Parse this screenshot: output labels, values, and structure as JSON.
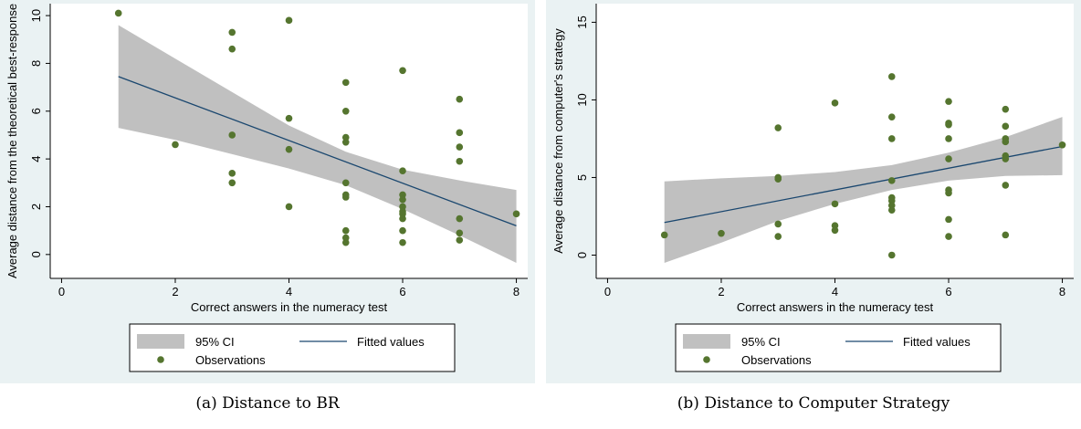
{
  "chart_data": [
    {
      "type": "scatter",
      "xlabel": "Correct answers in the numeracy test",
      "ylabel": "Average distance from the theoretical best-response",
      "xlim": [
        -0.2,
        8.2
      ],
      "ylim": [
        -1.0,
        10.5
      ],
      "xticks": [
        0,
        2,
        4,
        6,
        8
      ],
      "yticks": [
        0,
        2,
        4,
        6,
        8,
        10
      ],
      "grid": false,
      "legend_position": "bottom",
      "legend": {
        "ci_label": "95% CI",
        "fit_label": "Fitted values",
        "obs_label": "Observations"
      },
      "colors": {
        "plot_bg": "#ffffff",
        "outer_bg": "#eaf2f3",
        "ci": "#c0c0c0",
        "fit": "#1a476f",
        "points": "#55752f"
      },
      "points": [
        [
          1,
          10.1
        ],
        [
          2,
          4.6
        ],
        [
          3,
          9.3
        ],
        [
          3,
          8.6
        ],
        [
          3,
          5.0
        ],
        [
          3,
          3.4
        ],
        [
          3,
          3.0
        ],
        [
          4,
          9.8
        ],
        [
          4,
          5.7
        ],
        [
          4,
          4.4
        ],
        [
          4,
          2.0
        ],
        [
          5,
          7.2
        ],
        [
          5,
          6.0
        ],
        [
          5,
          4.9
        ],
        [
          5,
          4.7
        ],
        [
          5,
          3.0
        ],
        [
          5,
          2.5
        ],
        [
          5,
          2.4
        ],
        [
          5,
          1.0
        ],
        [
          5,
          0.7
        ],
        [
          5,
          0.5
        ],
        [
          6,
          7.7
        ],
        [
          6,
          3.5
        ],
        [
          6,
          2.5
        ],
        [
          6,
          2.3
        ],
        [
          6,
          2.0
        ],
        [
          6,
          1.8
        ],
        [
          6,
          1.7
        ],
        [
          6,
          1.5
        ],
        [
          6,
          1.0
        ],
        [
          6,
          0.5
        ],
        [
          7,
          6.5
        ],
        [
          7,
          5.1
        ],
        [
          7,
          4.5
        ],
        [
          7,
          3.9
        ],
        [
          7,
          1.5
        ],
        [
          7,
          0.9
        ],
        [
          7,
          0.6
        ],
        [
          8,
          1.7
        ]
      ],
      "fitted": [
        [
          1,
          7.45
        ],
        [
          8,
          1.2
        ]
      ],
      "ci_upper": [
        [
          1,
          9.6
        ],
        [
          2,
          8.2
        ],
        [
          3,
          6.8
        ],
        [
          4,
          5.4
        ],
        [
          5,
          4.3
        ],
        [
          6,
          3.55
        ],
        [
          7,
          3.1
        ],
        [
          8,
          2.7
        ]
      ],
      "ci_lower": [
        [
          1,
          5.3
        ],
        [
          2,
          4.8
        ],
        [
          3,
          4.2
        ],
        [
          4,
          3.6
        ],
        [
          5,
          2.9
        ],
        [
          6,
          1.9
        ],
        [
          7,
          0.8
        ],
        [
          8,
          -0.35
        ]
      ]
    },
    {
      "type": "scatter",
      "xlabel": "Correct answers in the numeracy test",
      "ylabel": "Average distance from computer's strategy",
      "xlim": [
        -0.2,
        8.2
      ],
      "ylim": [
        -1.5,
        16.2
      ],
      "xticks": [
        0,
        2,
        4,
        6,
        8
      ],
      "yticks": [
        0,
        5,
        10,
        15
      ],
      "grid": false,
      "legend_position": "bottom",
      "legend": {
        "ci_label": "95% CI",
        "fit_label": "Fitted values",
        "obs_label": "Observations"
      },
      "colors": {
        "plot_bg": "#ffffff",
        "outer_bg": "#eaf2f3",
        "ci": "#c0c0c0",
        "fit": "#1a476f",
        "points": "#55752f"
      },
      "points": [
        [
          1,
          1.3
        ],
        [
          2,
          1.4
        ],
        [
          3,
          8.2
        ],
        [
          3,
          5.0
        ],
        [
          3,
          4.9
        ],
        [
          3,
          2.0
        ],
        [
          3,
          1.2
        ],
        [
          4,
          9.8
        ],
        [
          4,
          3.3
        ],
        [
          4,
          1.9
        ],
        [
          4,
          1.6
        ],
        [
          5,
          11.5
        ],
        [
          5,
          8.9
        ],
        [
          5,
          7.5
        ],
        [
          5,
          4.8
        ],
        [
          5,
          3.7
        ],
        [
          5,
          3.5
        ],
        [
          5,
          3.2
        ],
        [
          5,
          2.9
        ],
        [
          5,
          0.0
        ],
        [
          6,
          9.9
        ],
        [
          6,
          8.5
        ],
        [
          6,
          8.4
        ],
        [
          6,
          7.5
        ],
        [
          6,
          6.2
        ],
        [
          6,
          4.2
        ],
        [
          6,
          4.0
        ],
        [
          6,
          2.3
        ],
        [
          6,
          1.2
        ],
        [
          7,
          9.4
        ],
        [
          7,
          8.3
        ],
        [
          7,
          7.5
        ],
        [
          7,
          7.3
        ],
        [
          7,
          6.4
        ],
        [
          7,
          6.2
        ],
        [
          7,
          4.5
        ],
        [
          7,
          1.3
        ],
        [
          8,
          7.1
        ]
      ],
      "fitted": [
        [
          1,
          2.1
        ],
        [
          8,
          7.0
        ]
      ],
      "ci_upper": [
        [
          1,
          4.75
        ],
        [
          2,
          4.95
        ],
        [
          3,
          5.1
        ],
        [
          4,
          5.35
        ],
        [
          5,
          5.8
        ],
        [
          6,
          6.6
        ],
        [
          7,
          7.6
        ],
        [
          8,
          8.9
        ]
      ],
      "ci_lower": [
        [
          1,
          -0.5
        ],
        [
          2,
          0.8
        ],
        [
          3,
          2.2
        ],
        [
          4,
          3.3
        ],
        [
          5,
          4.2
        ],
        [
          6,
          4.8
        ],
        [
          7,
          5.1
        ],
        [
          8,
          5.15
        ]
      ]
    }
  ],
  "captions": [
    "(a) Distance to BR",
    "(b) Distance to Computer Strategy"
  ]
}
